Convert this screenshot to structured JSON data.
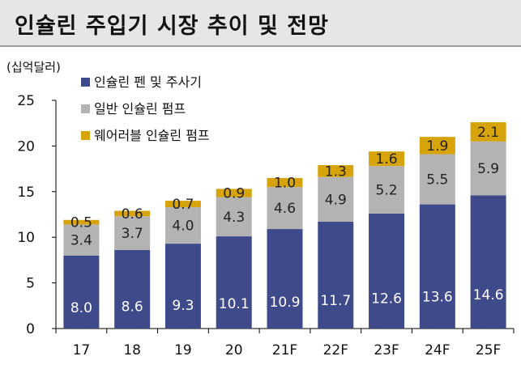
{
  "chart_data": {
    "type": "bar",
    "stacked": true,
    "title": "인슐린 주입기 시장 추이 및 전망",
    "unit": "(십억달러)",
    "categories": [
      "17",
      "18",
      "19",
      "20",
      "21F",
      "22F",
      "23F",
      "24F",
      "25F"
    ],
    "series": [
      {
        "name": "인슐린 펜 및 주사기",
        "color": "#3f4a8a",
        "values": [
          8.0,
          8.6,
          9.3,
          10.1,
          10.9,
          11.7,
          12.6,
          13.6,
          14.6
        ],
        "labels": [
          "8.0",
          "8.6",
          "9.3",
          "10.1",
          "10.9",
          "11.7",
          "12.6",
          "13.6",
          "14.6"
        ]
      },
      {
        "name": "일반 인슐린 펌프",
        "color": "#b3b3b3",
        "values": [
          3.4,
          3.7,
          4.0,
          4.3,
          4.6,
          4.9,
          5.2,
          5.5,
          5.9
        ],
        "labels": [
          "3.4",
          "3.7",
          "4.0",
          "4.3",
          "4.6",
          "4.9",
          "5.2",
          "5.5",
          "5.9"
        ]
      },
      {
        "name": "웨어러블 인슐린 펌프",
        "color": "#d6a30a",
        "values": [
          0.5,
          0.6,
          0.7,
          0.9,
          1.0,
          1.3,
          1.6,
          1.9,
          2.1
        ],
        "labels": [
          "0.5",
          "0.6",
          "0.7",
          "0.9",
          "1.0",
          "1.3",
          "1.6",
          "1.9",
          "2.1"
        ]
      }
    ],
    "yticks": [
      "0",
      "5",
      "10",
      "15",
      "20",
      "25"
    ],
    "ylim": [
      0,
      25
    ],
    "grid": false,
    "legend": "top-left"
  }
}
